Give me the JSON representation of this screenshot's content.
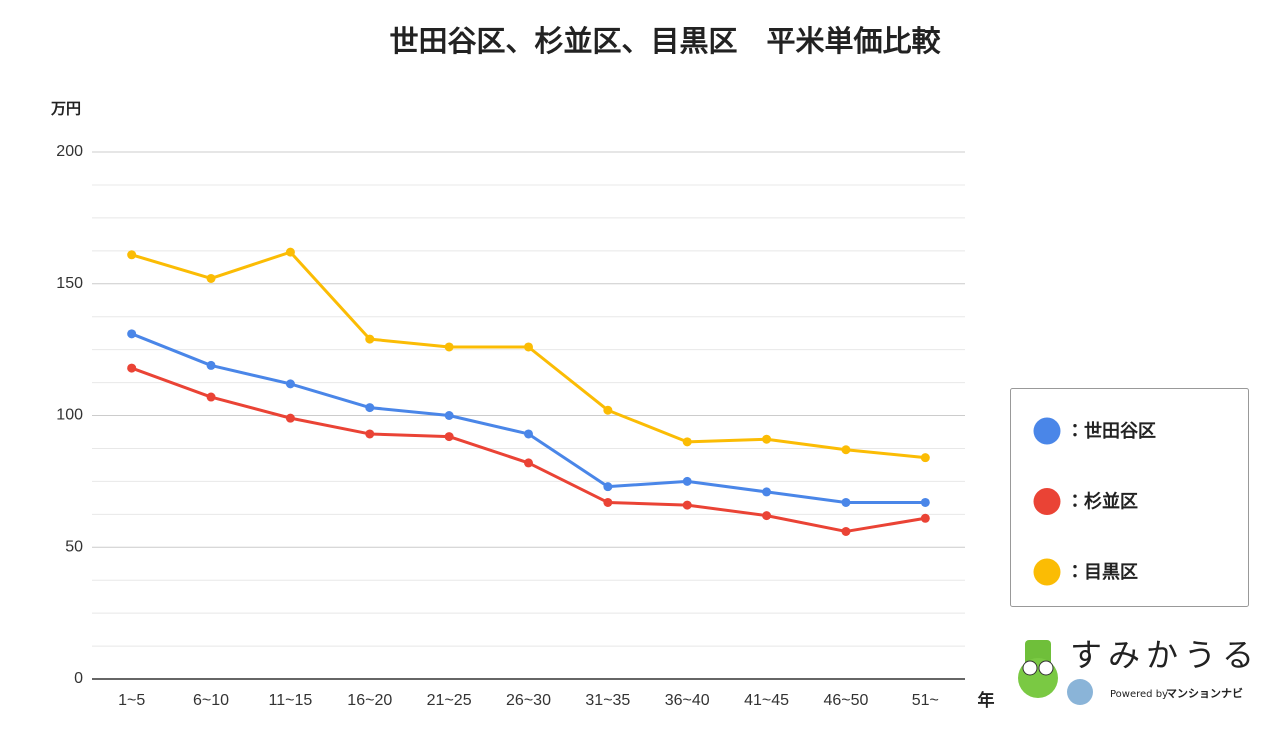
{
  "chart_data": {
    "type": "line",
    "title": "世田谷区、杉並区、目黒区　平米単価比較",
    "y_label": "万円",
    "x_label": "年",
    "categories": [
      "1~5",
      "6~10",
      "11~15",
      "16~20",
      "21~25",
      "26~30",
      "31~35",
      "36~40",
      "41~45",
      "46~50",
      "51~"
    ],
    "series": [
      {
        "name": "世田谷区",
        "color": "#4a86e8",
        "values": [
          131,
          119,
          112,
          103,
          100,
          93,
          73,
          75,
          71,
          67,
          67
        ]
      },
      {
        "name": "杉並区",
        "color": "#ea4335",
        "values": [
          118,
          107,
          99,
          93,
          92,
          82,
          67,
          66,
          62,
          56,
          61
        ]
      },
      {
        "name": "目黒区",
        "color": "#fbbc04",
        "values": [
          161,
          152,
          162,
          129,
          126,
          126,
          102,
          90,
          91,
          87,
          84
        ]
      }
    ],
    "legend_separator": "：",
    "legend_position": "right",
    "ylim": [
      0,
      200
    ],
    "yticks": [
      0,
      50,
      100,
      150,
      200
    ],
    "grid": true
  },
  "logo": {
    "name": "すみかうる",
    "powered_by": "Powered by",
    "brand": "マンションナビ"
  }
}
